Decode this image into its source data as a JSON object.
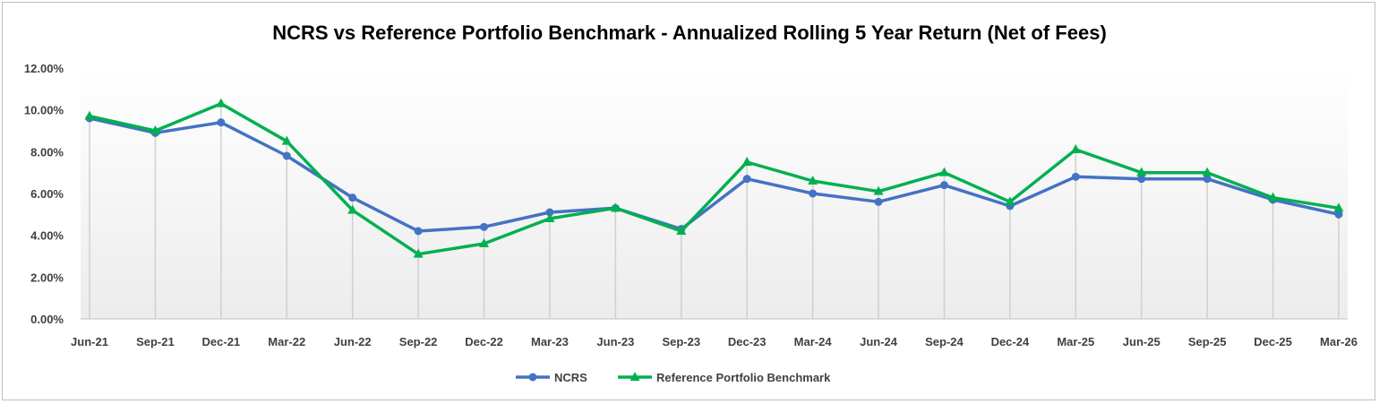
{
  "chart_data": {
    "type": "line",
    "title": "NCRS vs Reference Portfolio Benchmark - Annualized Rolling 5 Year Return (Net of Fees)",
    "xlabel": "",
    "ylabel": "",
    "categories": [
      "Jun-21",
      "Sep-21",
      "Dec-21",
      "Mar-22",
      "Jun-22",
      "Sep-22",
      "Dec-22",
      "Mar-23",
      "Jun-23",
      "Sep-23",
      "Dec-23",
      "Mar-24",
      "Jun-24",
      "Sep-24",
      "Dec-24",
      "Mar-25",
      "Jun-25",
      "Sep-25",
      "Dec-25",
      "Mar-26"
    ],
    "ylim": [
      0,
      12
    ],
    "y_ticks": [
      0,
      2,
      4,
      6,
      8,
      10,
      12
    ],
    "y_tick_labels": [
      "0.00%",
      "2.00%",
      "4.00%",
      "6.00%",
      "8.00%",
      "10.00%",
      "12.00%"
    ],
    "y_unit": "%",
    "grid": "vertical drop lines",
    "legend_position": "bottom",
    "series": [
      {
        "name": "NCRS",
        "color": "#4472C4",
        "marker": "circle",
        "values": [
          9.6,
          8.9,
          9.4,
          7.8,
          5.8,
          4.2,
          4.4,
          5.1,
          5.3,
          4.3,
          6.7,
          6.0,
          5.6,
          6.4,
          5.4,
          6.8,
          6.7,
          6.7,
          5.7,
          5.0
        ]
      },
      {
        "name": "Reference Portfolio Benchmark",
        "color": "#00B050",
        "marker": "triangle",
        "values": [
          9.7,
          9.0,
          10.3,
          8.5,
          5.2,
          3.1,
          3.6,
          4.8,
          5.3,
          4.2,
          7.5,
          6.6,
          6.1,
          7.0,
          5.6,
          8.1,
          7.0,
          7.0,
          5.8,
          5.3
        ]
      }
    ]
  }
}
